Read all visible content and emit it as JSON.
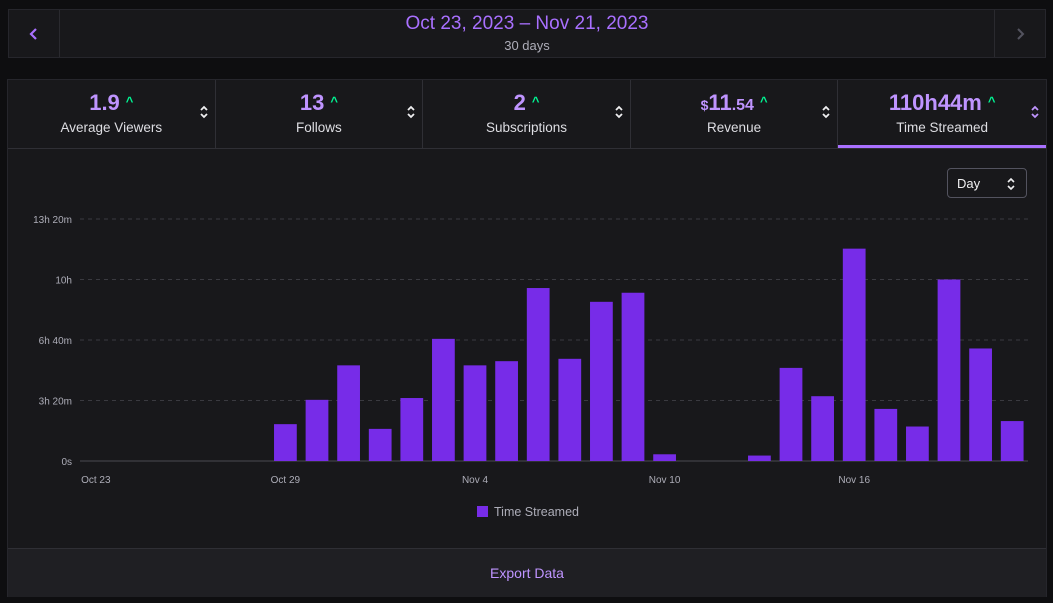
{
  "date_range": {
    "title": "Oct 23, 2023 – Nov 21, 2023",
    "subtitle": "30 days"
  },
  "metrics": [
    {
      "value": "1.9",
      "label": "Average Viewers",
      "trend": "up"
    },
    {
      "value": "13",
      "label": "Follows",
      "trend": "up"
    },
    {
      "value": "2",
      "label": "Subscriptions",
      "trend": "up"
    },
    {
      "currency": "$",
      "value": "11",
      "cents": ".54",
      "label": "Revenue",
      "trend": "up"
    },
    {
      "value": "110h44m",
      "label": "Time Streamed",
      "trend": "up",
      "active": true
    }
  ],
  "granularity": {
    "selected": "Day"
  },
  "chart_data": {
    "type": "bar",
    "title": "",
    "series": [
      {
        "name": "Time Streamed",
        "unit": "hours"
      }
    ],
    "categories": [
      "Oct 23",
      "Oct 24",
      "Oct 25",
      "Oct 26",
      "Oct 27",
      "Oct 28",
      "Oct 29",
      "Oct 30",
      "Oct 31",
      "Nov 1",
      "Nov 2",
      "Nov 3",
      "Nov 4",
      "Nov 5",
      "Nov 6",
      "Nov 7",
      "Nov 8",
      "Nov 9",
      "Nov 10",
      "Nov 11",
      "Nov 12",
      "Nov 13",
      "Nov 14",
      "Nov 15",
      "Nov 16",
      "Nov 17",
      "Nov 18",
      "Nov 19",
      "Nov 20",
      "Nov 21"
    ],
    "values": [
      0,
      0,
      0,
      0,
      0,
      0,
      2.03,
      3.37,
      5.27,
      1.77,
      3.47,
      6.73,
      5.27,
      5.5,
      9.53,
      5.63,
      8.77,
      9.27,
      0.37,
      0,
      0,
      0.3,
      5.13,
      3.57,
      11.7,
      2.87,
      1.9,
      10.0,
      6.2,
      2.2
    ],
    "x_tick_labels": [
      "Oct 23",
      "Oct 29",
      "Nov 4",
      "Nov 10",
      "Nov 16"
    ],
    "y_tick_labels": [
      "0s",
      "3h 20m",
      "6h 40m",
      "10h",
      "13h 20m"
    ],
    "ylim": [
      0,
      13.333
    ],
    "legend": "Time Streamed",
    "legend_position": "bottom-center",
    "grid": true
  },
  "actions": {
    "export": "Export Data"
  },
  "colors": {
    "accent": "#a970ff",
    "bar": "#772ce8",
    "trend_up": "#00f593"
  }
}
